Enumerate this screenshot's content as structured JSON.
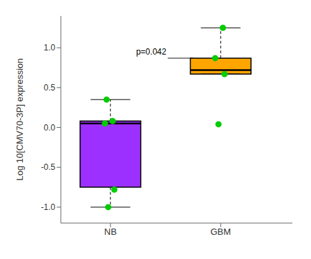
{
  "chart_data": {
    "type": "box",
    "categories": [
      "NB",
      "GBM"
    ],
    "boxes": [
      {
        "q1": -0.75,
        "median": 0.05,
        "q3": 0.08,
        "whisker_low": -1.0,
        "whisker_high": 0.35
      },
      {
        "q1": 0.67,
        "median": 0.72,
        "q3": 0.87,
        "whisker_low": 0.67,
        "whisker_high": 1.25
      }
    ],
    "colors": [
      "#9B30FF",
      "#FFA500"
    ],
    "points": {
      "values": [
        [
          -1.0,
          -0.78,
          0.05,
          0.08,
          0.35
        ],
        [
          0.04,
          0.67,
          0.87,
          1.25
        ]
      ],
      "color": "#00CC00",
      "marker": "circle"
    },
    "ylabel": "Log 10[CMV70-3P] expression",
    "ylim": [
      -1.2,
      1.4
    ],
    "yticks": [
      {
        "value": -1.0,
        "label": "-1.0"
      },
      -0.5,
      {
        "value": 0.0,
        "label": "0.0"
      },
      0.5,
      {
        "value": 1.0,
        "label": "1.0"
      }
    ],
    "annotations": [
      {
        "text": "p=0.042",
        "y": 0.87
      }
    ],
    "grid": false
  }
}
